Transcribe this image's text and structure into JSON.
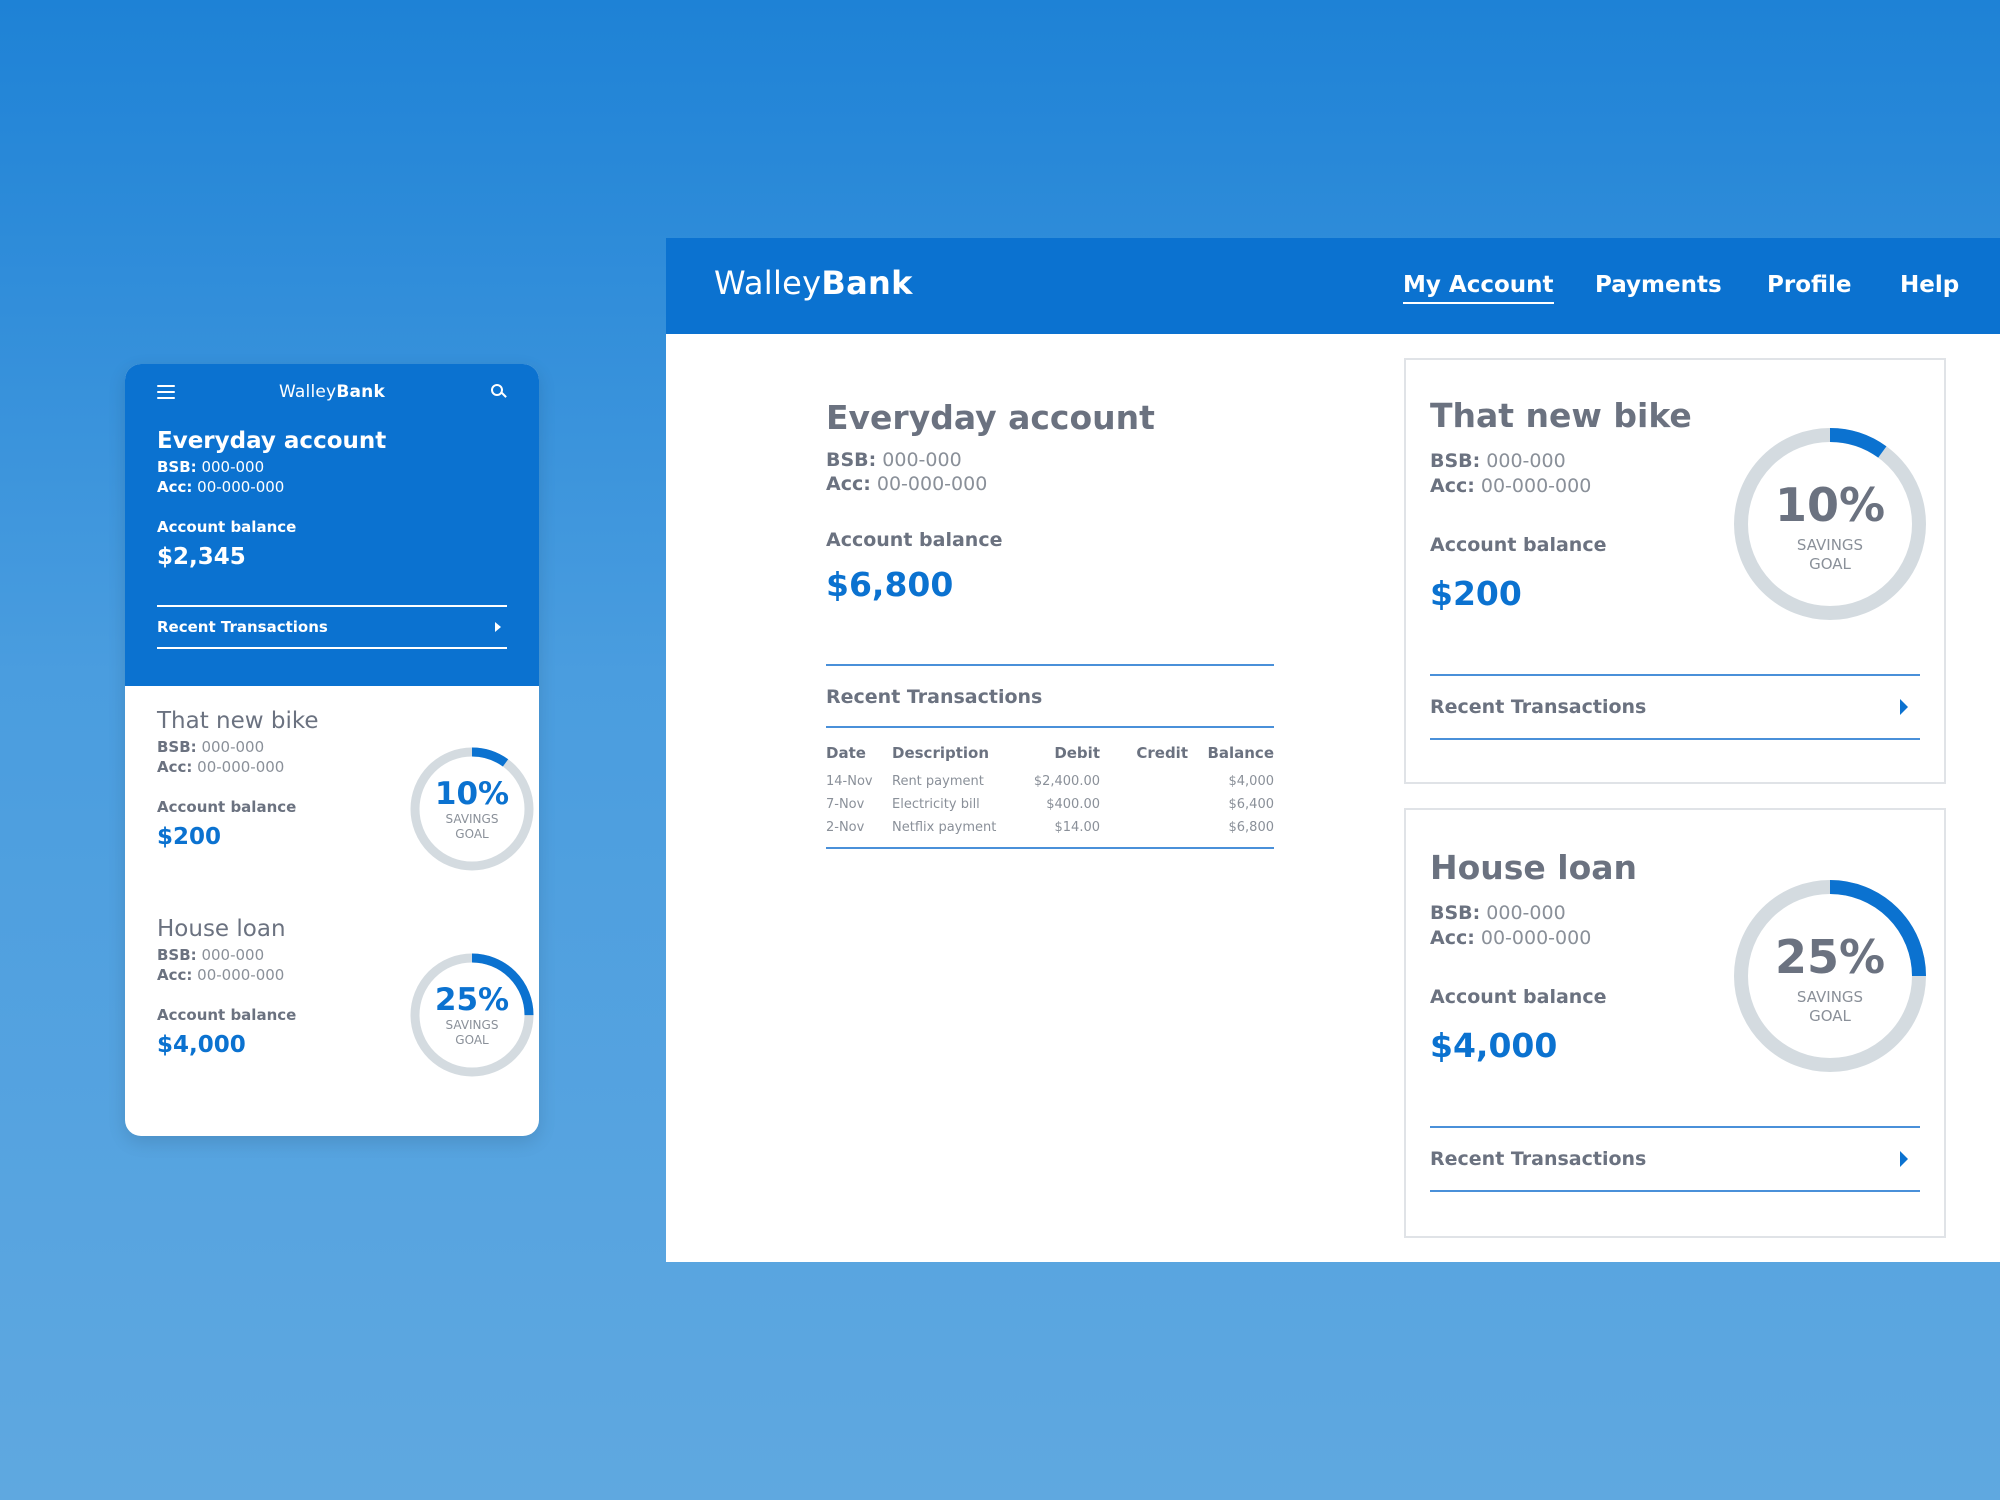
{
  "brand": {
    "light": "Walley",
    "bold": "Bank"
  },
  "colors": {
    "primary": "#0b72d0",
    "ring_track": "#d4dbe0",
    "text_gray": "#6b7280"
  },
  "mobile": {
    "menu_icon": "hamburger-icon",
    "search_icon": "search-icon",
    "everyday": {
      "title": "Everyday account",
      "bsb_label": "BSB:",
      "bsb": "000-000",
      "acc_label": "Acc:",
      "acc": "00-000-000",
      "balance_label": "Account balance",
      "balance": "$2,345",
      "recent_label": "Recent Transactions"
    },
    "accounts": [
      {
        "name": "That new bike",
        "bsb_label": "BSB:",
        "bsb": "000-000",
        "acc_label": "Acc:",
        "acc": "00-000-000",
        "balance_label": "Account balance",
        "balance": "$200",
        "percent": "10%",
        "progress": 0.1,
        "goal_line1": "SAVINGS",
        "goal_line2": "GOAL"
      },
      {
        "name": "House loan",
        "bsb_label": "BSB:",
        "bsb": "000-000",
        "acc_label": "Acc:",
        "acc": "00-000-000",
        "balance_label": "Account balance",
        "balance": "$4,000",
        "percent": "25%",
        "progress": 0.25,
        "goal_line1": "SAVINGS",
        "goal_line2": "GOAL"
      }
    ]
  },
  "desktop": {
    "nav": [
      {
        "label": "My Account",
        "active": true
      },
      {
        "label": "Payments",
        "active": false
      },
      {
        "label": "Profile",
        "active": false
      },
      {
        "label": "Help",
        "active": false
      }
    ],
    "everyday": {
      "title": "Everyday account",
      "bsb_label": "BSB:",
      "bsb": "000-000",
      "acc_label": "Acc:",
      "acc": "00-000-000",
      "balance_label": "Account balance",
      "balance": "$6,800",
      "recent_label": "Recent Transactions",
      "table": {
        "headers": [
          "Date",
          "Description",
          "Debit",
          "Credit",
          "Balance"
        ],
        "rows": [
          [
            "14-Nov",
            "Rent payment",
            "$2,400.00",
            "",
            "$4,000"
          ],
          [
            "7-Nov",
            "Electricity bill",
            "$400.00",
            "",
            "$6,400"
          ],
          [
            "2-Nov",
            "Netflix payment",
            "$14.00",
            "",
            "$6,800"
          ]
        ]
      }
    },
    "accounts": [
      {
        "name": "That new bike",
        "bsb_label": "BSB:",
        "bsb": "000-000",
        "acc_label": "Acc:",
        "acc": "00-000-000",
        "balance_label": "Account balance",
        "balance": "$200",
        "percent": "10%",
        "progress": 0.1,
        "goal_line1": "SAVINGS",
        "goal_line2": "GOAL",
        "recent_label": "Recent Transactions"
      },
      {
        "name": "House loan",
        "bsb_label": "BSB:",
        "bsb": "000-000",
        "acc_label": "Acc:",
        "acc": "00-000-000",
        "balance_label": "Account balance",
        "balance": "$4,000",
        "percent": "25%",
        "progress": 0.25,
        "goal_line1": "SAVINGS",
        "goal_line2": "GOAL",
        "recent_label": "Recent Transactions"
      }
    ]
  }
}
